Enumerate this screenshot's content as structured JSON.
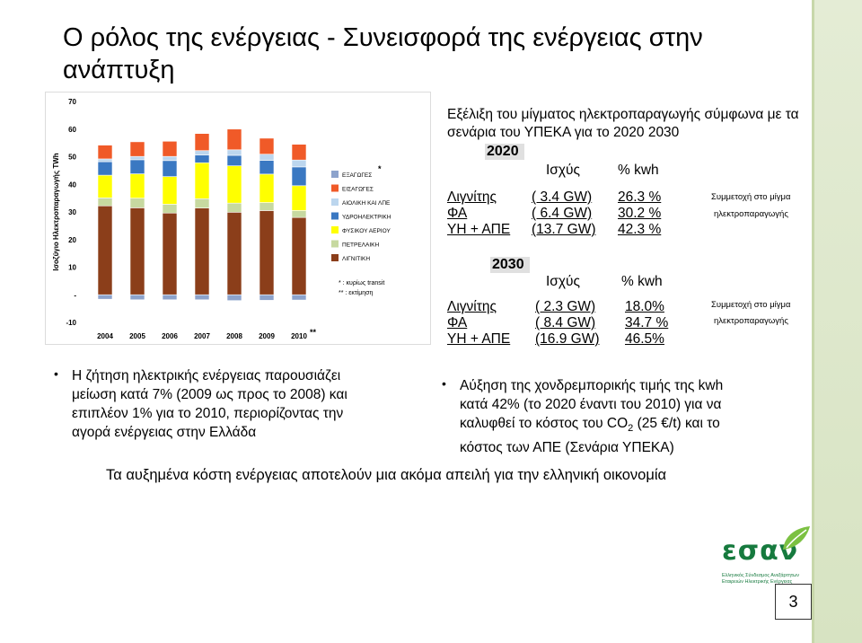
{
  "title": "Ο ρόλος της ενέργειας - Συνεισφορά της ενέργειας στην ανάπτυξη",
  "page_number": "3",
  "mix_heading": "Εξέλιξη του μίγματος ηλεκτροπαραγωγής σύμφωνα με τα σενάρια του ΥΠΕΚΑ για το 2020 2030",
  "scenario_2020": {
    "year": "2020",
    "col_power": "Ισχύς",
    "col_kwh": "% kwh",
    "rows": [
      {
        "name": "Λιγνίτης",
        "power": "( 3.4 GW)",
        "kwh": "26.3 %"
      },
      {
        "name": "ΦΑ",
        "power": "( 6.4 GW)",
        "kwh": "30.2 %"
      },
      {
        "name": "ΥΗ + ΑΠΕ",
        "power": "(13.7 GW)",
        "kwh": "42.3 %"
      }
    ],
    "note_line1": "Συμμετοχή στο μίγμα",
    "note_line2": "ηλεκτροπαραγωγής"
  },
  "scenario_2030": {
    "year": "2030",
    "col_power": "Ισχύς",
    "col_kwh": "% kwh",
    "rows": [
      {
        "name": "Λιγνίτης",
        "power": "( 2.3 GW)",
        "kwh": "18.0%"
      },
      {
        "name": "ΦΑ",
        "power": "( 8.4 GW)",
        "kwh": "34.7 %"
      },
      {
        "name": "ΥΗ + ΑΠΕ",
        "power": "(16.9 GW)",
        "kwh": "46.5%"
      }
    ],
    "note_line1": "Συμμετοχή στο μίγμα",
    "note_line2": "ηλεκτροπαραγωγής"
  },
  "left_point": {
    "bullet": "•",
    "lines": [
      "Η ζήτηση ηλεκτρικής ενέργειας παρουσιάζει",
      "μείωση κατά 7% (2009 ως προς το 2008) και",
      "επιπλέον 1% για το 2010, περιορίζοντας την",
      "αγορά ενέργειας στην Ελλάδα"
    ]
  },
  "right_point": {
    "bullet": "•",
    "line1": "Αύξηση της χονδρεμπορικής τιμής της kwh",
    "line2": "κατά 42% (το 2020 έναντι του 2010) για να",
    "line3_pre": "καλυφθεί το κόστος του CO",
    "line3_sub": "2",
    "line3_post": " (25 €/t) και το",
    "line4": "κόστος των ΑΠΕ (Σενάρια ΥΠΕΚΑ)"
  },
  "bottom_statement": "Τα αυξημένα κόστη ενέργειας αποτελούν μια ακόμα απειλή για την ελληνική οικονομία",
  "logo": {
    "name": "εσαν",
    "subtitle_line1": "Ελληνικός Σύνδεσμος Ανεξάρτητων",
    "subtitle_line2": "Εταιρειών Ηλεκτρικής Ενέργειας"
  },
  "chart_data": {
    "type": "bar",
    "stacked": true,
    "ylabel": "Ισοζύγιο Ηλεκτροπαραγωγής TWh",
    "ylim": [
      -10,
      70
    ],
    "yticks": [
      "70",
      "60",
      "50",
      "40",
      "30",
      "20",
      "10",
      "-",
      "-10"
    ],
    "categories": [
      "2004",
      "2005",
      "2006",
      "2007",
      "2008",
      "2009",
      "2010"
    ],
    "category_marks": [
      "",
      "",
      "",
      "",
      "",
      "",
      "**"
    ],
    "series": [
      {
        "name": "ΛΙΓΝΙΤΙΚΗ",
        "color": "#8b3e1a",
        "values": [
          32.2,
          31.5,
          29.6,
          31.4,
          29.9,
          30.5,
          28.0
        ]
      },
      {
        "name": "ΠΕΤΡΕΛΑΙΚΗ",
        "color": "#c7d9a0",
        "values": [
          2.9,
          3.5,
          3.2,
          3.4,
          3.3,
          2.9,
          2.5
        ]
      },
      {
        "name": "ΦΥΣΙΚΟΥ ΑΕΡΙΟΥ",
        "color": "#ffff00",
        "values": [
          8.2,
          8.8,
          10.0,
          13.0,
          13.5,
          10.3,
          9.0
        ]
      },
      {
        "name": "ΥΔΡΟΗΛΕΚΤΡΙΚΗ",
        "color": "#3a78c2",
        "values": [
          4.9,
          5.1,
          5.8,
          2.8,
          3.8,
          5.0,
          6.8
        ]
      },
      {
        "name": "ΑΙΟΛΙΚΗ ΚΑΙ ΛΠΕ",
        "color": "#bcd6ee",
        "values": [
          1.0,
          1.2,
          1.5,
          1.6,
          2.0,
          2.2,
          2.5
        ]
      },
      {
        "name": "ΕΙΣΑΓΩΓΕΣ",
        "color": "#f05a28",
        "values": [
          5.0,
          5.3,
          5.5,
          6.2,
          7.5,
          5.8,
          5.7
        ]
      },
      {
        "name": "ΕΞΑΓΩΓΕΣ",
        "color": "#8da3cc",
        "values": [
          -1.6,
          -1.8,
          -1.8,
          -1.8,
          -2.1,
          -2.0,
          -1.9
        ]
      }
    ],
    "legend": [
      {
        "label": "ΕΞΑΓΩΓΕΣ",
        "mark": "*",
        "color": "#8da3cc"
      },
      {
        "label": "ΕΙΣΑΓΩΓΕΣ",
        "mark": "",
        "color": "#f05a28"
      },
      {
        "label": "ΑΙΟΛΙΚΗ ΚΑΙ ΛΠΕ",
        "mark": "",
        "color": "#bcd6ee"
      },
      {
        "label": "ΥΔΡΟΗΛΕΚΤΡΙΚΗ",
        "mark": "",
        "color": "#3a78c2"
      },
      {
        "label": "ΦΥΣΙΚΟΥ ΑΕΡΙΟΥ",
        "mark": "",
        "color": "#ffff00"
      },
      {
        "label": "ΠΕΤΡΕΛΑΙΚΗ",
        "mark": "",
        "color": "#c7d9a0"
      },
      {
        "label": "ΛΙΓΝΙΤΙΚΗ",
        "mark": "",
        "color": "#8b3e1a"
      }
    ],
    "notes": [
      "* : κυρίως transit",
      "** : εκτίμηση"
    ],
    "legend_position": "right",
    "grid": false
  }
}
